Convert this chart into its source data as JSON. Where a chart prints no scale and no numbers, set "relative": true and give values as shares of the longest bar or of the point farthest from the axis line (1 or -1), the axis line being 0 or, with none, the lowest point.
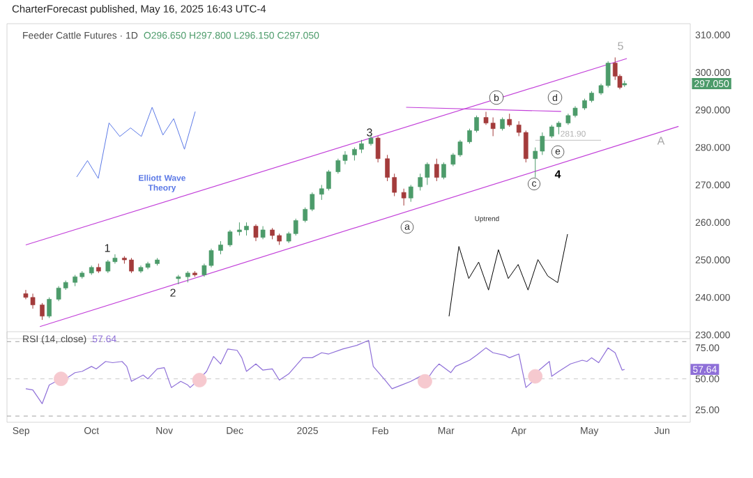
{
  "chart_data": [
    {
      "type": "candlestick",
      "title": "Feeder Cattle Futures · 1D",
      "subtitle": "O296.650 H297.800 L296.150 C297.050",
      "x": [
        "2024-09-03",
        "2024-09-06",
        "2024-09-10",
        "2024-09-13",
        "2024-09-17",
        "2024-09-20",
        "2024-09-24",
        "2024-09-27",
        "2024-10-01",
        "2024-10-04",
        "2024-10-08",
        "2024-10-11",
        "2024-10-15",
        "2024-10-18",
        "2024-10-22",
        "2024-10-25",
        "2024-10-29",
        "2024-11-07",
        "2024-11-11",
        "2024-11-14",
        "2024-11-18",
        "2024-11-21",
        "2024-11-25",
        "2024-11-29",
        "2024-12-03",
        "2024-12-06",
        "2024-12-10",
        "2024-12-13",
        "2024-12-17",
        "2024-12-20",
        "2024-12-24",
        "2024-12-27",
        "2024-12-31",
        "2025-01-03",
        "2025-01-07",
        "2025-01-10",
        "2025-01-14",
        "2025-01-17",
        "2025-01-21",
        "2025-01-24",
        "2025-01-28",
        "2025-01-31",
        "2025-02-04",
        "2025-02-07",
        "2025-02-11",
        "2025-02-14",
        "2025-02-18",
        "2025-02-21",
        "2025-02-25",
        "2025-02-28",
        "2025-03-04",
        "2025-03-07",
        "2025-03-11",
        "2025-03-14",
        "2025-03-18",
        "2025-03-21",
        "2025-03-25",
        "2025-03-28",
        "2025-04-01",
        "2025-04-04",
        "2025-04-08",
        "2025-04-11",
        "2025-04-15",
        "2025-04-18",
        "2025-04-22",
        "2025-04-25",
        "2025-04-29",
        "2025-05-02",
        "2025-05-06",
        "2025-05-09",
        "2025-05-12",
        "2025-05-14",
        "2025-05-16"
      ],
      "ohlc": [
        [
          241,
          242,
          239.5,
          240
        ],
        [
          240,
          241,
          237,
          238
        ],
        [
          238,
          238.5,
          234,
          235
        ],
        [
          235,
          240,
          234.5,
          239.5
        ],
        [
          239.5,
          243,
          239,
          242.5
        ],
        [
          242.5,
          244.5,
          242,
          244
        ],
        [
          244,
          246,
          243,
          245.5
        ],
        [
          245.5,
          247,
          245,
          246.5
        ],
        [
          246.5,
          248.5,
          246,
          248
        ],
        [
          248,
          249,
          246.5,
          247
        ],
        [
          247,
          250,
          246.5,
          249.5
        ],
        [
          249.5,
          251.5,
          249,
          250.5
        ],
        [
          250.5,
          251,
          249,
          250
        ],
        [
          250,
          250.5,
          246.5,
          247
        ],
        [
          247,
          248.5,
          246.5,
          248
        ],
        [
          248,
          249.5,
          247.5,
          249
        ],
        [
          249,
          250.5,
          248.5,
          250
        ],
        [
          245,
          246,
          243.5,
          245.5
        ],
        [
          245.5,
          247,
          244,
          246.5
        ],
        [
          246.5,
          247,
          245.5,
          246
        ],
        [
          246,
          249,
          245.5,
          248.5
        ],
        [
          248.5,
          253,
          248,
          252.5
        ],
        [
          252.5,
          255,
          251.5,
          254
        ],
        [
          254,
          258,
          253.5,
          257.5
        ],
        [
          257.5,
          260,
          256.5,
          258
        ],
        [
          258,
          260,
          256.5,
          259
        ],
        [
          259,
          259.5,
          255,
          256
        ],
        [
          256,
          259,
          255.5,
          258
        ],
        [
          258,
          258.5,
          255.5,
          256.5
        ],
        [
          256.5,
          257,
          254,
          255
        ],
        [
          255,
          257.5,
          254.5,
          257
        ],
        [
          257,
          261,
          256.5,
          260.5
        ],
        [
          260.5,
          264,
          260,
          263.5
        ],
        [
          263.5,
          268,
          263,
          267.5
        ],
        [
          267.5,
          270,
          266,
          269
        ],
        [
          269,
          274,
          268.5,
          273.5
        ],
        [
          273.5,
          277,
          273,
          276.5
        ],
        [
          276.5,
          279,
          275.5,
          278
        ],
        [
          278,
          280,
          276.5,
          279.5
        ],
        [
          279.5,
          282,
          278.5,
          281
        ],
        [
          281,
          283.5,
          280.5,
          282.5
        ],
        [
          282.5,
          283,
          276,
          277
        ],
        [
          277,
          278,
          271,
          272
        ],
        [
          272,
          273,
          267,
          268
        ],
        [
          268,
          269,
          264.5,
          266.5
        ],
        [
          266.5,
          270,
          265.5,
          269.5
        ],
        [
          269.5,
          273,
          268.5,
          272
        ],
        [
          272,
          276,
          270,
          275.5
        ],
        [
          275.5,
          277,
          271,
          272
        ],
        [
          272,
          276,
          271.5,
          275.5
        ],
        [
          275.5,
          278.5,
          275,
          278
        ],
        [
          278,
          282,
          277.5,
          281.5
        ],
        [
          281.5,
          285,
          281,
          284.5
        ],
        [
          284.5,
          288.5,
          284,
          288
        ],
        [
          288,
          289.5,
          286,
          286.5
        ],
        [
          286.5,
          288,
          283,
          285
        ],
        [
          285,
          288,
          284.5,
          287.5
        ],
        [
          287.5,
          289,
          285.5,
          286
        ],
        [
          286,
          287,
          283,
          284
        ],
        [
          284,
          284.5,
          276,
          277
        ],
        [
          277,
          280,
          272,
          279
        ],
        [
          279,
          284,
          278,
          283
        ],
        [
          283,
          286,
          282.5,
          285.5
        ],
        [
          285.5,
          287,
          283.5,
          286.5
        ],
        [
          286.5,
          289,
          286,
          288.5
        ],
        [
          288.5,
          291,
          288,
          290.5
        ],
        [
          290.5,
          293,
          290,
          292.5
        ],
        [
          292.5,
          295,
          292,
          294.5
        ],
        [
          294.5,
          297,
          294,
          296.5
        ],
        [
          296.5,
          303,
          296,
          302.5
        ],
        [
          302.5,
          304,
          298,
          299
        ],
        [
          299,
          299.5,
          295.5,
          296
        ],
        [
          296.65,
          297.8,
          296.15,
          297.05
        ]
      ],
      "series": [
        {
          "type": "line",
          "color": "#c23fd9",
          "x": [
            "2024-09-03",
            "2025-05-17"
          ],
          "values": [
            254,
            303.7
          ]
        },
        {
          "type": "line",
          "color": "#c23fd9",
          "x": [
            "2024-09-09",
            "2025-06-08"
          ],
          "values": [
            232.2,
            285.6
          ]
        },
        {
          "type": "line",
          "color": "#c23fd9",
          "x": [
            "2025-02-12",
            "2025-04-19"
          ],
          "values": [
            290.7,
            289.6
          ]
        },
        {
          "type": "line",
          "color": "#cccccc",
          "x": [
            "2025-04-08",
            "2025-05-06"
          ],
          "values": [
            281.9,
            281.9
          ]
        }
      ],
      "xlim": [
        "2024-08-26",
        "2025-06-13"
      ],
      "ylim": [
        229,
        313
      ],
      "yticks": [
        {
          "value": 230,
          "label": "230.000"
        },
        {
          "value": 240,
          "label": "240.000"
        },
        {
          "value": 250,
          "label": "250.000"
        },
        {
          "value": 260,
          "label": "260.000"
        },
        {
          "value": 270,
          "label": "270.000"
        },
        {
          "value": 280,
          "label": "280.000"
        },
        {
          "value": 290,
          "label": "290.000"
        },
        {
          "value": 300,
          "label": "300.000"
        },
        {
          "value": 310,
          "label": "310.000"
        }
      ],
      "tick_labels": "y",
      "annotations": [
        "CharterForecast published, May 16, 2025 16:43 UTC-4",
        "1",
        "2",
        "3",
        "4",
        "5",
        "a",
        "b",
        "c",
        "d",
        "e",
        "A",
        "281.90",
        "297.050"
      ]
    },
    {
      "type": "line",
      "title": "RSI (14, close)",
      "subtitle": "57.64",
      "series": [
        {
          "type": "line",
          "color": "#8e6fd8",
          "x": [
            "2024-09-03",
            "2024-09-06",
            "2024-09-10",
            "2024-09-13",
            "2024-09-17",
            "2024-09-20",
            "2024-09-24",
            "2024-09-27",
            "2024-10-01",
            "2024-10-03",
            "2024-10-07",
            "2024-10-10",
            "2024-10-14",
            "2024-10-16",
            "2024-10-18",
            "2024-10-23",
            "2024-10-25",
            "2024-10-29",
            "2024-11-01",
            "2024-11-04",
            "2024-11-08",
            "2024-11-11",
            "2024-11-12",
            "2024-11-15",
            "2024-11-19",
            "2024-11-22",
            "2024-11-25",
            "2024-11-28",
            "2024-12-02",
            "2024-12-04",
            "2024-12-06",
            "2024-12-10",
            "2024-12-13",
            "2024-12-17",
            "2024-12-20",
            "2024-12-24",
            "2024-12-30",
            "2025-01-03",
            "2025-01-07",
            "2025-01-10",
            "2025-01-16",
            "2025-01-22",
            "2025-01-27",
            "2025-01-29",
            "2025-02-03",
            "2025-02-06",
            "2025-02-10",
            "2025-02-14",
            "2025-02-18",
            "2025-02-20",
            "2025-02-24",
            "2025-02-26",
            "2025-03-03",
            "2025-03-05",
            "2025-03-11",
            "2025-03-14",
            "2025-03-18",
            "2025-03-21",
            "2025-03-26",
            "2025-03-28",
            "2025-04-01",
            "2025-04-04",
            "2025-04-07",
            "2025-04-09",
            "2025-04-14",
            "2025-04-15",
            "2025-04-18",
            "2025-04-23",
            "2025-04-28",
            "2025-04-30",
            "2025-05-02",
            "2025-05-05",
            "2025-05-09",
            "2025-05-12",
            "2025-05-15",
            "2025-05-16"
          ],
          "values": [
            42,
            41,
            30,
            45,
            49,
            50,
            55,
            56,
            60,
            58,
            64,
            63,
            64,
            60,
            48,
            53,
            50,
            58,
            59,
            43,
            48,
            45,
            43,
            48,
            56,
            68,
            62,
            74,
            73,
            67,
            56,
            62,
            57,
            58,
            49,
            54,
            67,
            67,
            71,
            70,
            74,
            77,
            81,
            60,
            49,
            42,
            45,
            48,
            52,
            47,
            58,
            62,
            55,
            60,
            65,
            69,
            75,
            71,
            69,
            67,
            70,
            43,
            48,
            56,
            64,
            52,
            56,
            62,
            65,
            64,
            67,
            63,
            75,
            71,
            57,
            57.64
          ]
        },
        {
          "type": "scatter",
          "color": "#f6c9cf",
          "marker": "circle",
          "x": [
            "2024-09-18",
            "2024-11-16",
            "2025-02-20",
            "2025-04-08"
          ],
          "values": [
            50,
            49,
            48,
            52
          ]
        }
      ],
      "xlim": [
        "2024-08-26",
        "2025-06-13"
      ],
      "ylim": [
        15,
        88
      ],
      "xticks": [
        {
          "value": "2024-09-01",
          "label": "Sep"
        },
        {
          "value": "2024-10-01",
          "label": "Oct"
        },
        {
          "value": "2024-11-01",
          "label": "Nov"
        },
        {
          "value": "2024-12-01",
          "label": "Dec"
        },
        {
          "value": "2025-01-01",
          "label": "2025"
        },
        {
          "value": "2025-02-01",
          "label": "Feb"
        },
        {
          "value": "2025-03-01",
          "label": "Mar"
        },
        {
          "value": "2025-04-01",
          "label": "Apr"
        },
        {
          "value": "2025-05-01",
          "label": "May"
        },
        {
          "value": "2025-06-01",
          "label": "Jun"
        }
      ],
      "yticks": [
        {
          "value": 25,
          "label": "25.00"
        },
        {
          "value": 50,
          "label": "50.00"
        },
        {
          "value": 75,
          "label": "75.00"
        }
      ],
      "ref_lines": [
        {
          "axis": "y",
          "value": 80,
          "line_style": "dashed",
          "color": "#888888"
        },
        {
          "axis": "y",
          "value": 50,
          "line_style": "dashed",
          "color": "#bbbbbb"
        },
        {
          "axis": "y",
          "value": 20,
          "line_style": "dashed",
          "color": "#888888"
        }
      ],
      "annotations": [
        {
          "text": "57.64",
          "y": 57.64
        }
      ]
    },
    {
      "type": "line",
      "relative": true,
      "categories": [
        null,
        null,
        null,
        null,
        null,
        null,
        null,
        null,
        null,
        null,
        null,
        null
      ],
      "color": "#5a78e6",
      "values": [
        0.02,
        0.25,
        0,
        0.78,
        0.59,
        0.71,
        0.59,
        1,
        0.61,
        0.84,
        0.41,
        0.94
      ],
      "annotations": [
        "Elliott Wave Theory"
      ]
    },
    {
      "type": "line",
      "relative": true,
      "title": "Uptrend",
      "categories": [
        null,
        null,
        null,
        null,
        null,
        null,
        null,
        null,
        null,
        null,
        null,
        null,
        null
      ],
      "color": "#000000",
      "values": [
        0,
        0.85,
        0.46,
        0.66,
        0.32,
        0.81,
        0.46,
        0.63,
        0.32,
        0.69,
        0.49,
        0.41,
        1
      ]
    }
  ]
}
